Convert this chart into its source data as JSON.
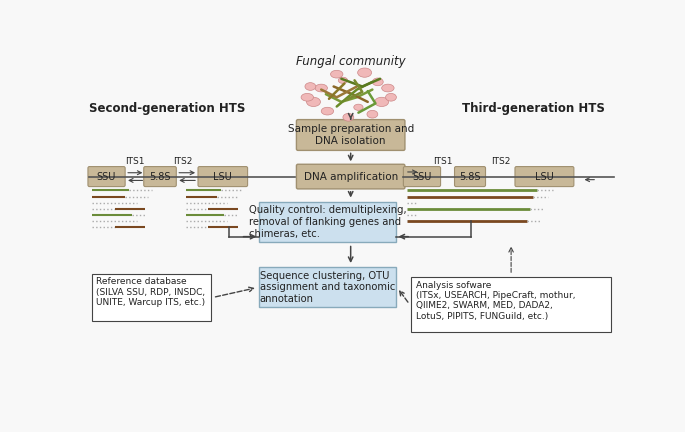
{
  "bg_color": "#f8f8f8",
  "tan": "#c8b898",
  "blue": "#cce0ee",
  "white": "#ffffff",
  "stroke_tan": "#a09070",
  "stroke_blue": "#88aabb",
  "stroke_dark": "#444444",
  "green": "#6b8c3a",
  "brown": "#7a4820",
  "dot_color": "#aaaaaa",
  "text_dark": "#222222",
  "title": "Fungal community",
  "second_gen": "Second-generation HTS",
  "third_gen": "Third-generation HTS",
  "sample_prep": "Sample preparation and\nDNA isolation",
  "dna_amp": "DNA amplification",
  "qc_text": "Quality control: demultiplexing,\nremoval of flanking genes and\nchimeras, etc.",
  "seq_clust": "Sequence clustering, OTU\nassignment and taxonomic\nannotation",
  "ref_db": "Reference database\n(SILVA SSU, RDP, INSDC,\nUNITE, Warcup ITS, etc.)",
  "analysis_sw": "Analysis sofware\n(ITSx, USEARCH, PipeCraft, mothur,\nQIIME2, SWARM, MED, DADA2,\nLotuS, PIPITS, FUNGuild, etc.)"
}
